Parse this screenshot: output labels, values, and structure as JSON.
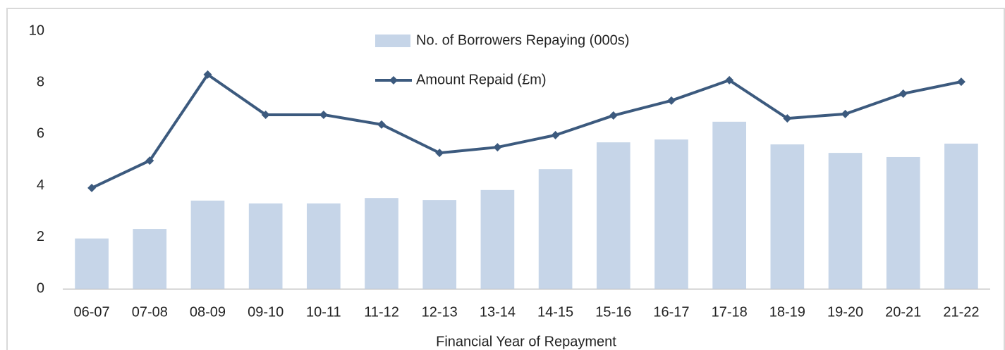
{
  "chart_data": {
    "type": "combo",
    "x_label": "Financial Year of Repayment",
    "categories": [
      "06-07",
      "07-08",
      "08-09",
      "09-10",
      "10-11",
      "11-12",
      "12-13",
      "13-14",
      "14-15",
      "15-16",
      "16-17",
      "17-18",
      "18-19",
      "19-20",
      "20-21",
      "21-22"
    ],
    "series": [
      {
        "name": "No. of Borrowers Repaying (000s)",
        "type": "bar",
        "color": "#c6d5e8",
        "values": [
          1.95,
          2.32,
          3.42,
          3.31,
          3.31,
          3.52,
          3.44,
          3.83,
          4.64,
          5.68,
          5.79,
          6.48,
          5.6,
          5.27,
          5.11,
          5.63
        ]
      },
      {
        "name": "Amount Repaid (£m)",
        "type": "line",
        "color": "#3c5a7e",
        "values": [
          3.91,
          4.97,
          8.31,
          6.75,
          6.75,
          6.37,
          5.27,
          5.49,
          5.96,
          6.72,
          7.3,
          8.09,
          6.61,
          6.78,
          7.57,
          8.03
        ]
      }
    ],
    "ylim": [
      0,
      10
    ],
    "yticks": [
      0,
      2,
      4,
      6,
      8,
      10
    ],
    "grid": false
  }
}
